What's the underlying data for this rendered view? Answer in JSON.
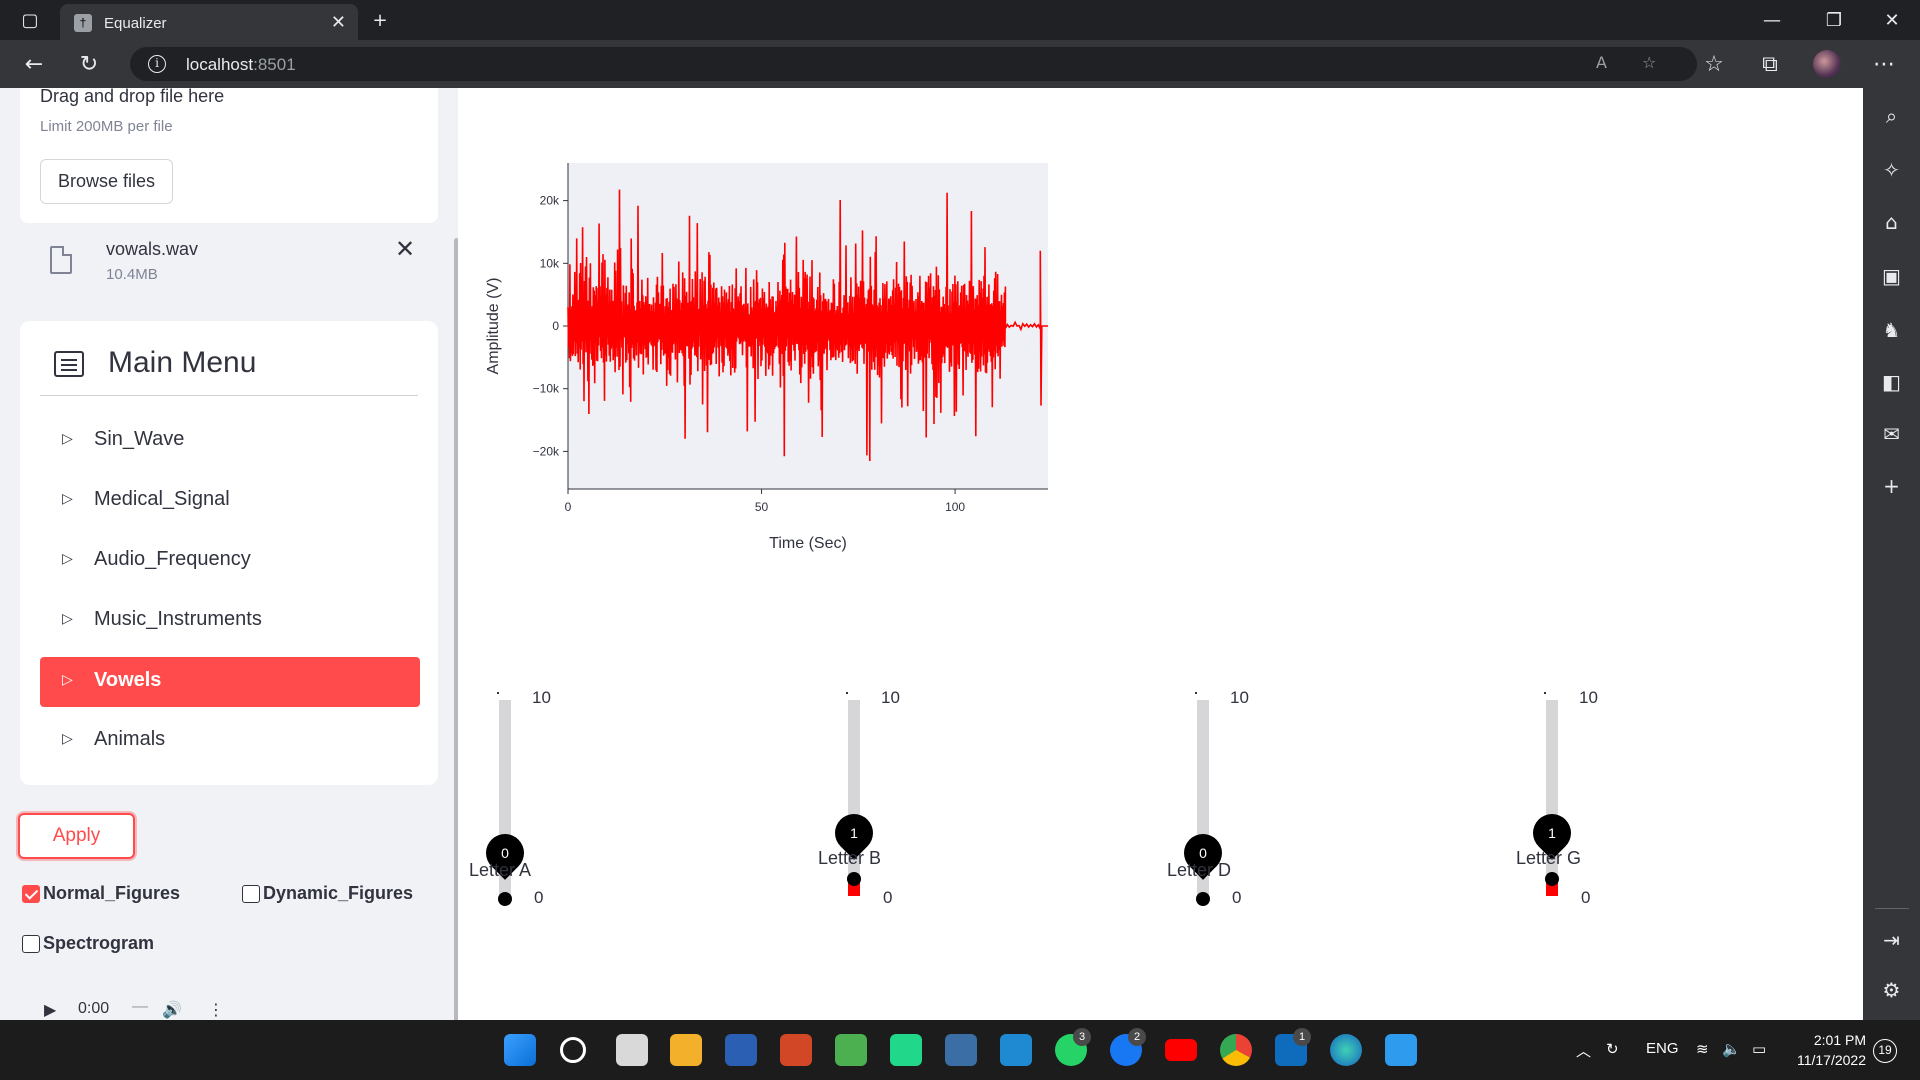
{
  "browser": {
    "tab_title": "Equalizer",
    "url_host": "localhost",
    "url_port": ":8501"
  },
  "uploader": {
    "drag_text": "Drag and drop file here",
    "limit_text": "Limit 200MB per file",
    "browse_label": "Browse files",
    "file_name": "vowals.wav",
    "file_size": "10.4MB"
  },
  "menu": {
    "title": "Main Menu",
    "items": [
      {
        "label": "Sin_Wave",
        "active": false
      },
      {
        "label": "Medical_Signal",
        "active": false
      },
      {
        "label": "Audio_Frequency",
        "active": false
      },
      {
        "label": "Music_Instruments",
        "active": false
      },
      {
        "label": "Vowels",
        "active": true
      },
      {
        "label": "Animals",
        "active": false
      }
    ]
  },
  "controls": {
    "apply_label": "Apply",
    "normal_figures": {
      "label": "Normal_Figures",
      "checked": true
    },
    "dynamic_figures": {
      "label": "Dynamic_Figures",
      "checked": false
    },
    "spectrogram": {
      "label": "Spectrogram",
      "checked": false
    }
  },
  "audio_player": {
    "time": "0:00"
  },
  "chart_data": {
    "type": "line",
    "title": "",
    "xlabel": "Time (Sec)",
    "ylabel": "Amplitude (V)",
    "xlim": [
      0,
      124
    ],
    "ylim": [
      -26000,
      26000
    ],
    "x_ticks": [
      0,
      50,
      100
    ],
    "y_ticks": [
      20000,
      10000,
      0,
      -10000,
      -20000
    ],
    "y_tick_labels": [
      "20k",
      "10k",
      "0",
      "−10k",
      "−20k"
    ],
    "series": [
      {
        "color": "#ff0000",
        "signal_end_x": 113,
        "tail_spike_x": 122,
        "peak_abs": 23500
      }
    ]
  },
  "sliders": [
    {
      "label": "Letter A",
      "value": 0,
      "min": 0,
      "max": 10
    },
    {
      "label": "Letter B",
      "value": 1,
      "min": 0,
      "max": 10
    },
    {
      "label": "Letter D",
      "value": 0,
      "min": 0,
      "max": 10
    },
    {
      "label": "Letter G",
      "value": 1,
      "min": 0,
      "max": 10
    }
  ],
  "taskbar": {
    "language": "ENG",
    "time": "2:01 PM",
    "date": "11/17/2022",
    "notifications": "19",
    "badges": {
      "whatsapp": "3",
      "facebook": "2",
      "outlook": "1"
    }
  },
  "colors": {
    "accent": "#ff4b4b",
    "signal": "#ff0000",
    "sidebar_bg": "#f0f2f6"
  }
}
